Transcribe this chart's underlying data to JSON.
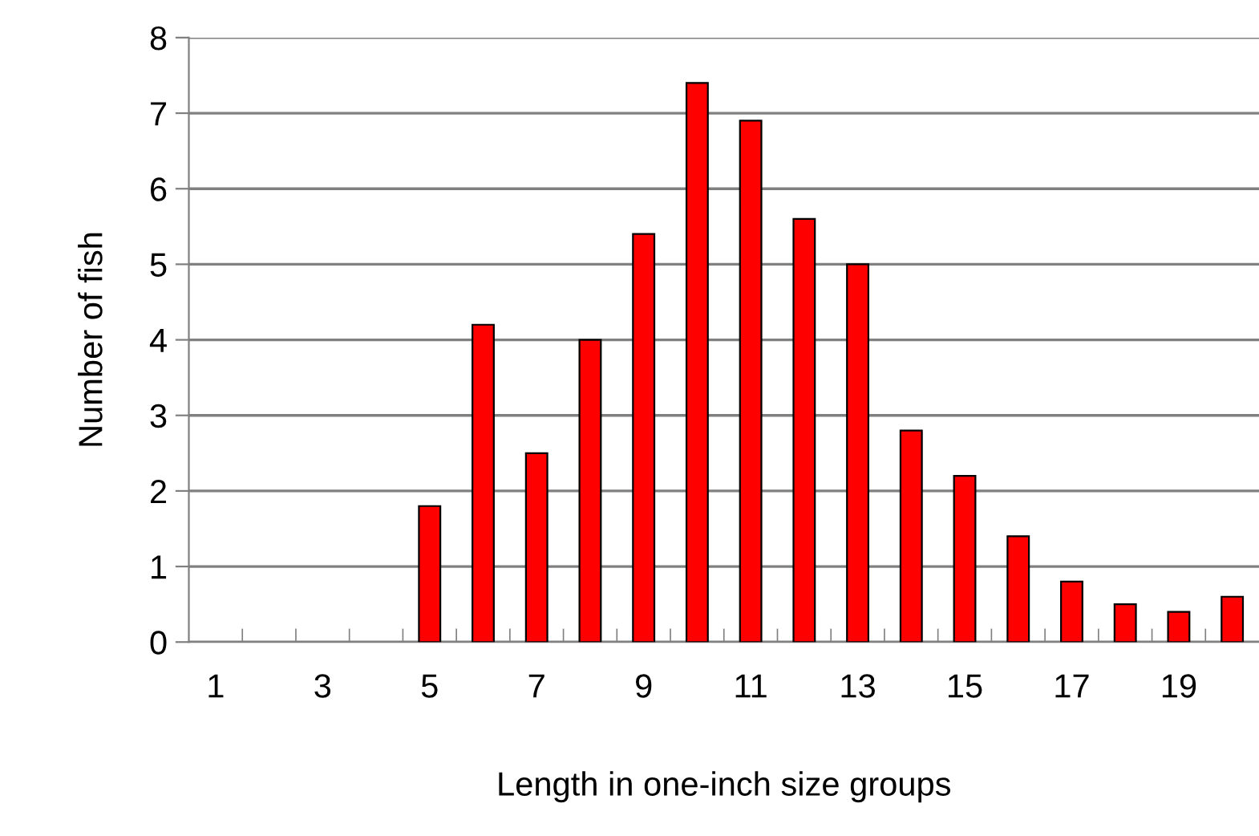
{
  "chart_data": {
    "type": "bar",
    "xlabel": "Length in one-inch size groups",
    "ylabel": "Number of fish",
    "categories": [
      "1",
      null,
      "3",
      null,
      "5",
      null,
      "7",
      null,
      "9",
      null,
      "11",
      null,
      "13",
      null,
      "15",
      null,
      "17",
      null,
      "19",
      null
    ],
    "values": [
      0,
      0,
      0,
      0,
      1.8,
      4.2,
      2.5,
      4.0,
      5.4,
      7.4,
      6.9,
      5.6,
      5.0,
      2.8,
      2.2,
      1.4,
      0.8,
      0.5,
      0.4,
      0.6
    ],
    "color": "#ff0000",
    "ylim": [
      0,
      8
    ],
    "yticks": [
      0,
      1,
      2,
      3,
      4,
      5,
      6,
      7,
      8
    ],
    "grid": "y"
  }
}
